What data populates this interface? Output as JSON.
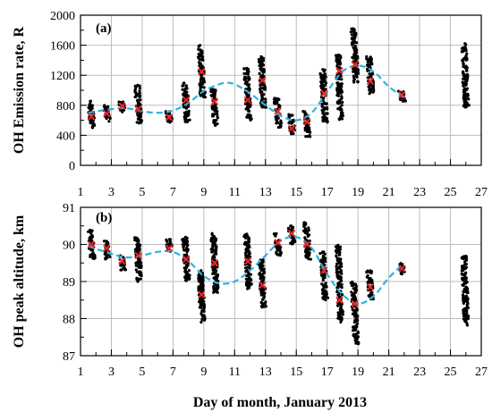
{
  "chart_data": [
    {
      "type": "scatter",
      "panel_label": "(a)",
      "ylabel": "OH Emission rate, R",
      "xlabel": "",
      "xlim": [
        1,
        27
      ],
      "ylim": [
        0,
        2000
      ],
      "x_ticks": [
        1,
        3,
        5,
        7,
        9,
        11,
        13,
        15,
        17,
        19,
        21,
        23,
        25,
        27
      ],
      "y_ticks": [
        0,
        400,
        800,
        1200,
        1600,
        2000
      ],
      "grid": true,
      "colors": {
        "points": "#000000",
        "nightly_mean": "#e8262b",
        "fit": "#2bb3e3"
      },
      "series": [
        {
          "kind": "observations",
          "style": "dense black points",
          "values": [
            {
              "x": 1.7,
              "ymin": 500,
              "ymax": 860
            },
            {
              "x": 2.7,
              "ymin": 580,
              "ymax": 800
            },
            {
              "x": 3.7,
              "ymin": 700,
              "ymax": 860
            },
            {
              "x": 4.75,
              "ymin": 560,
              "ymax": 1080
            },
            {
              "x": 6.75,
              "ymin": 560,
              "ymax": 720
            },
            {
              "x": 7.85,
              "ymin": 560,
              "ymax": 1100
            },
            {
              "x": 8.85,
              "ymin": 900,
              "ymax": 1600
            },
            {
              "x": 9.7,
              "ymin": 520,
              "ymax": 1020
            },
            {
              "x": 11.85,
              "ymin": 600,
              "ymax": 1300
            },
            {
              "x": 12.8,
              "ymin": 750,
              "ymax": 1450
            },
            {
              "x": 13.8,
              "ymin": 500,
              "ymax": 900
            },
            {
              "x": 14.7,
              "ymin": 420,
              "ymax": 700
            },
            {
              "x": 15.7,
              "ymin": 380,
              "ymax": 720
            },
            {
              "x": 16.8,
              "ymin": 560,
              "ymax": 1300
            },
            {
              "x": 17.8,
              "ymin": 600,
              "ymax": 1480
            },
            {
              "x": 18.8,
              "ymin": 1100,
              "ymax": 1820
            },
            {
              "x": 19.8,
              "ymin": 950,
              "ymax": 1450
            },
            {
              "x": 21.85,
              "ymin": 850,
              "ymax": 1000
            },
            {
              "x": 25.95,
              "ymin": 770,
              "ymax": 1630
            }
          ]
        },
        {
          "kind": "nightly_mean",
          "style": "red x markers",
          "values": [
            {
              "x": 1.7,
              "y": 650
            },
            {
              "x": 2.7,
              "y": 690
            },
            {
              "x": 3.7,
              "y": 790
            },
            {
              "x": 4.75,
              "y": 750
            },
            {
              "x": 6.75,
              "y": 640
            },
            {
              "x": 7.85,
              "y": 870
            },
            {
              "x": 8.85,
              "y": 1250
            },
            {
              "x": 9.7,
              "y": 850
            },
            {
              "x": 11.85,
              "y": 870
            },
            {
              "x": 12.8,
              "y": 1130
            },
            {
              "x": 13.8,
              "y": 720
            },
            {
              "x": 14.7,
              "y": 490
            },
            {
              "x": 15.7,
              "y": 580
            },
            {
              "x": 16.8,
              "y": 960
            },
            {
              "x": 17.8,
              "y": 1260
            },
            {
              "x": 18.8,
              "y": 1340
            },
            {
              "x": 19.8,
              "y": 1120
            },
            {
              "x": 21.85,
              "y": 940
            }
          ]
        },
        {
          "kind": "fit",
          "style": "cyan dashed line",
          "values": [
            {
              "x": 1.5,
              "y": 700
            },
            {
              "x": 3,
              "y": 750
            },
            {
              "x": 4,
              "y": 760
            },
            {
              "x": 5,
              "y": 720
            },
            {
              "x": 6,
              "y": 700
            },
            {
              "x": 7,
              "y": 730
            },
            {
              "x": 8,
              "y": 830
            },
            {
              "x": 9,
              "y": 990
            },
            {
              "x": 10,
              "y": 1080
            },
            {
              "x": 10.5,
              "y": 1100
            },
            {
              "x": 11,
              "y": 1080
            },
            {
              "x": 12,
              "y": 960
            },
            {
              "x": 13,
              "y": 800
            },
            {
              "x": 14,
              "y": 660
            },
            {
              "x": 15,
              "y": 600
            },
            {
              "x": 16,
              "y": 700
            },
            {
              "x": 17,
              "y": 980
            },
            {
              "x": 18,
              "y": 1250
            },
            {
              "x": 19,
              "y": 1330
            },
            {
              "x": 20,
              "y": 1250
            },
            {
              "x": 21,
              "y": 1050
            },
            {
              "x": 22,
              "y": 900
            }
          ]
        }
      ]
    },
    {
      "type": "scatter",
      "panel_label": "(b)",
      "ylabel": "OH peak altitude, km",
      "xlabel": "Day of month, January 2013",
      "xlim": [
        1,
        27
      ],
      "ylim": [
        87,
        91
      ],
      "x_ticks": [
        1,
        3,
        5,
        7,
        9,
        11,
        13,
        15,
        17,
        19,
        21,
        23,
        25,
        27
      ],
      "y_ticks": [
        87,
        88,
        89,
        90,
        91
      ],
      "grid": true,
      "colors": {
        "points": "#000000",
        "nightly_mean": "#e8262b",
        "fit": "#2bb3e3"
      },
      "series": [
        {
          "kind": "observations",
          "style": "dense black points",
          "values": [
            {
              "x": 1.7,
              "ymin": 89.6,
              "ymax": 90.4
            },
            {
              "x": 2.7,
              "ymin": 89.6,
              "ymax": 90.1
            },
            {
              "x": 3.7,
              "ymin": 89.3,
              "ymax": 89.7
            },
            {
              "x": 4.75,
              "ymin": 89.0,
              "ymax": 90.2
            },
            {
              "x": 6.75,
              "ymin": 89.8,
              "ymax": 90.2
            },
            {
              "x": 7.85,
              "ymin": 89.0,
              "ymax": 90.2
            },
            {
              "x": 8.85,
              "ymin": 87.9,
              "ymax": 89.3
            },
            {
              "x": 9.7,
              "ymin": 88.7,
              "ymax": 90.3
            },
            {
              "x": 11.85,
              "ymin": 88.8,
              "ymax": 90.3
            },
            {
              "x": 12.8,
              "ymin": 88.3,
              "ymax": 89.6
            },
            {
              "x": 13.8,
              "ymin": 89.7,
              "ymax": 90.3
            },
            {
              "x": 14.7,
              "ymin": 90.0,
              "ymax": 90.5
            },
            {
              "x": 15.7,
              "ymin": 89.6,
              "ymax": 90.6
            },
            {
              "x": 16.8,
              "ymin": 88.5,
              "ymax": 89.8
            },
            {
              "x": 17.8,
              "ymin": 87.9,
              "ymax": 90.0
            },
            {
              "x": 18.8,
              "ymin": 87.3,
              "ymax": 89.0
            },
            {
              "x": 19.8,
              "ymin": 88.5,
              "ymax": 89.3
            },
            {
              "x": 21.85,
              "ymin": 89.2,
              "ymax": 89.5
            },
            {
              "x": 25.95,
              "ymin": 87.8,
              "ymax": 89.7
            }
          ]
        },
        {
          "kind": "nightly_mean",
          "style": "red x markers",
          "values": [
            {
              "x": 1.7,
              "y": 90.0
            },
            {
              "x": 2.7,
              "y": 89.9
            },
            {
              "x": 3.7,
              "y": 89.55
            },
            {
              "x": 4.75,
              "y": 89.7
            },
            {
              "x": 6.75,
              "y": 89.9
            },
            {
              "x": 7.85,
              "y": 89.6
            },
            {
              "x": 8.85,
              "y": 88.65
            },
            {
              "x": 9.7,
              "y": 89.5
            },
            {
              "x": 11.85,
              "y": 89.55
            },
            {
              "x": 12.8,
              "y": 88.9
            },
            {
              "x": 13.8,
              "y": 90.05
            },
            {
              "x": 14.7,
              "y": 90.3
            },
            {
              "x": 15.7,
              "y": 90.0
            },
            {
              "x": 16.8,
              "y": 89.3
            },
            {
              "x": 17.8,
              "y": 88.5
            },
            {
              "x": 18.8,
              "y": 88.4
            },
            {
              "x": 19.8,
              "y": 88.85
            },
            {
              "x": 21.85,
              "y": 89.35
            }
          ]
        },
        {
          "kind": "fit",
          "style": "cyan dashed line",
          "values": [
            {
              "x": 1.5,
              "y": 89.95
            },
            {
              "x": 3,
              "y": 89.75
            },
            {
              "x": 4,
              "y": 89.65
            },
            {
              "x": 5,
              "y": 89.7
            },
            {
              "x": 6,
              "y": 89.8
            },
            {
              "x": 7,
              "y": 89.8
            },
            {
              "x": 8,
              "y": 89.55
            },
            {
              "x": 9,
              "y": 89.15
            },
            {
              "x": 10,
              "y": 88.95
            },
            {
              "x": 11,
              "y": 89.0
            },
            {
              "x": 12,
              "y": 89.3
            },
            {
              "x": 13,
              "y": 89.7
            },
            {
              "x": 14,
              "y": 90.1
            },
            {
              "x": 15,
              "y": 90.2
            },
            {
              "x": 16,
              "y": 89.9
            },
            {
              "x": 17,
              "y": 89.2
            },
            {
              "x": 18,
              "y": 88.65
            },
            {
              "x": 19,
              "y": 88.4
            },
            {
              "x": 20,
              "y": 88.6
            },
            {
              "x": 21,
              "y": 89.1
            },
            {
              "x": 22,
              "y": 89.5
            }
          ]
        }
      ]
    }
  ]
}
